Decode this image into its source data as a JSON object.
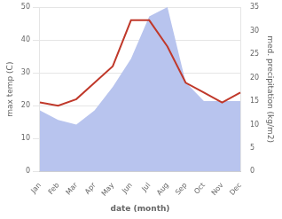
{
  "chart_data": {
    "type": "line",
    "categories": [
      "Jan",
      "Feb",
      "Mar",
      "Apr",
      "May",
      "Jun",
      "Jul",
      "Aug",
      "Sep",
      "Oct",
      "Nov",
      "Dec"
    ],
    "xlabel": "date (month)",
    "ylabel": "max temp (C)",
    "y2label": "med. precipitation (kg/m2)",
    "series": [
      {
        "type": "area",
        "color": "#b8c4ee",
        "axis": "y2",
        "values": [
          13,
          11,
          10,
          13,
          18,
          24,
          33,
          35,
          19,
          15,
          15,
          15
        ]
      },
      {
        "type": "line",
        "color": "#c0392b",
        "values": [
          21,
          20,
          22,
          27,
          32,
          46,
          46,
          38,
          27,
          24,
          21,
          24
        ]
      }
    ],
    "ylim": [
      0,
      50
    ],
    "yticks": [
      0,
      10,
      20,
      30,
      40,
      50
    ],
    "y2lim": [
      0,
      35
    ],
    "y2ticks": [
      0,
      5,
      10,
      15,
      20,
      25,
      30,
      35
    ],
    "grid": true
  }
}
